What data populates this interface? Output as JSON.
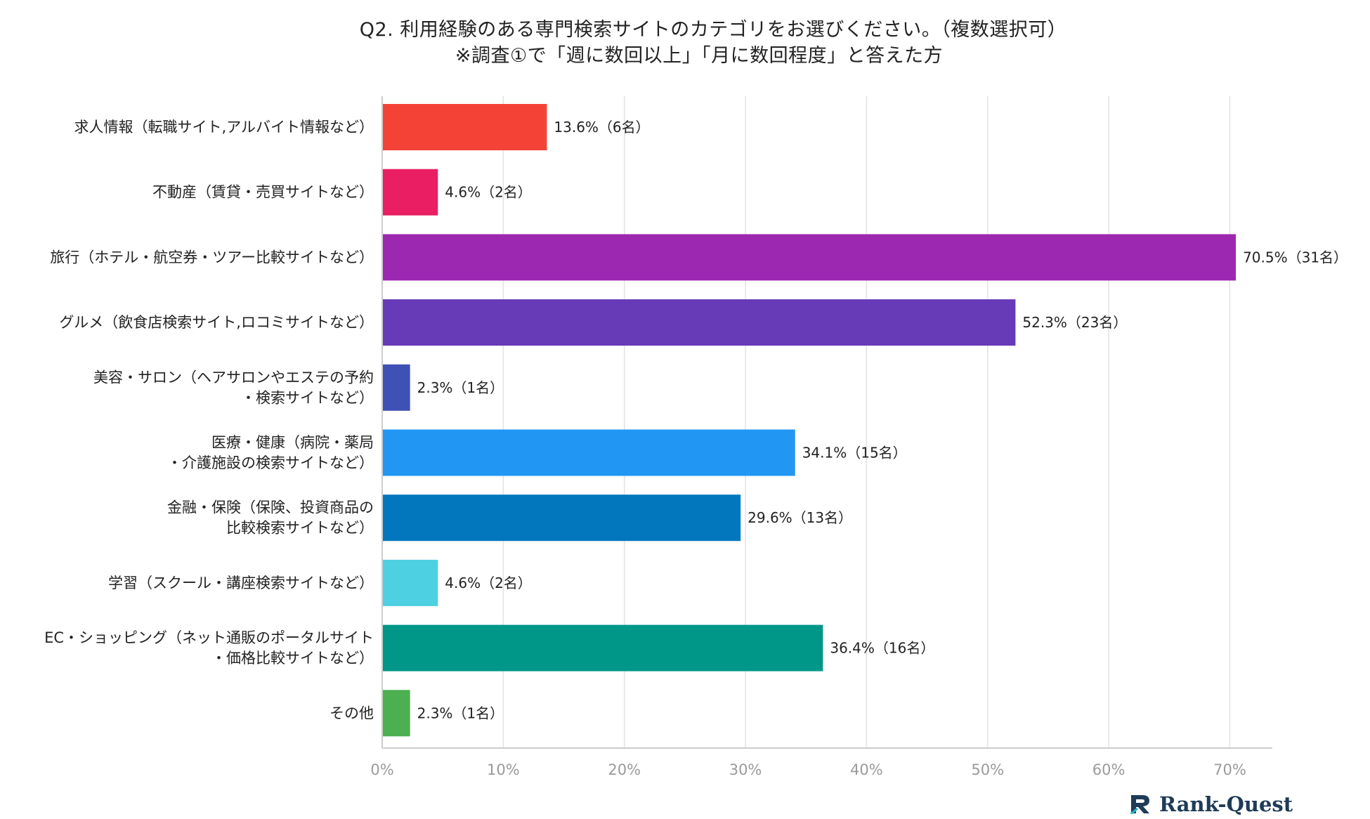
{
  "title_line1": "Q2. 利用経験のある専門検索サイトのカテゴリをお選びください。（複数選択可）",
  "title_line2": "※調査①で「週に数回以上」「月に数回程度」と答えた方",
  "logo": {
    "text": "Rank-Quest",
    "color": "#1f3b57",
    "accent": "#2bb3c0"
  },
  "chart_data": {
    "type": "bar",
    "orientation": "horizontal",
    "xlim": [
      0,
      73.5
    ],
    "xticks": [
      0,
      10,
      20,
      30,
      40,
      50,
      60,
      70
    ],
    "tick_suffix": "%",
    "grid": true,
    "categories": [
      [
        "求人情報（転職サイト,アルバイト情報など）"
      ],
      [
        "不動産（賃貸・売買サイトなど）"
      ],
      [
        "旅行（ホテル・航空券・ツアー比較サイトなど）"
      ],
      [
        "グルメ（飲食店検索サイト,ロコミサイトなど）"
      ],
      [
        "美容・サロン（ヘアサロンやエステの予約",
        "・検索サイトなど）"
      ],
      [
        "医療・健康（病院・薬局",
        "・介護施設の検索サイトなど）"
      ],
      [
        "金融・保険（保険、投資商品の",
        "比較検索サイトなど）"
      ],
      [
        "学習（スクール・講座検索サイトなど）"
      ],
      [
        "EC・ショッピング（ネット通販のポータルサイト",
        "・価格比較サイトなど）"
      ],
      [
        "その他"
      ]
    ],
    "values": [
      13.6,
      4.6,
      70.5,
      52.3,
      2.3,
      34.1,
      29.6,
      4.6,
      36.4,
      2.3
    ],
    "data_labels": [
      "13.6%（6名）",
      "4.6%（2名）",
      "70.5%（31名）",
      "52.3%（23名）",
      "2.3%（1名）",
      "34.1%（15名）",
      "29.6%（13名）",
      "4.6%（2名）",
      "36.4%（16名）",
      "2.3%（1名）"
    ],
    "colors": [
      "#f44336",
      "#e91e63",
      "#9c27b0",
      "#673ab7",
      "#3f51b5",
      "#2196f3",
      "#0277bd",
      "#4dd0e1",
      "#009688",
      "#4caf50"
    ]
  }
}
